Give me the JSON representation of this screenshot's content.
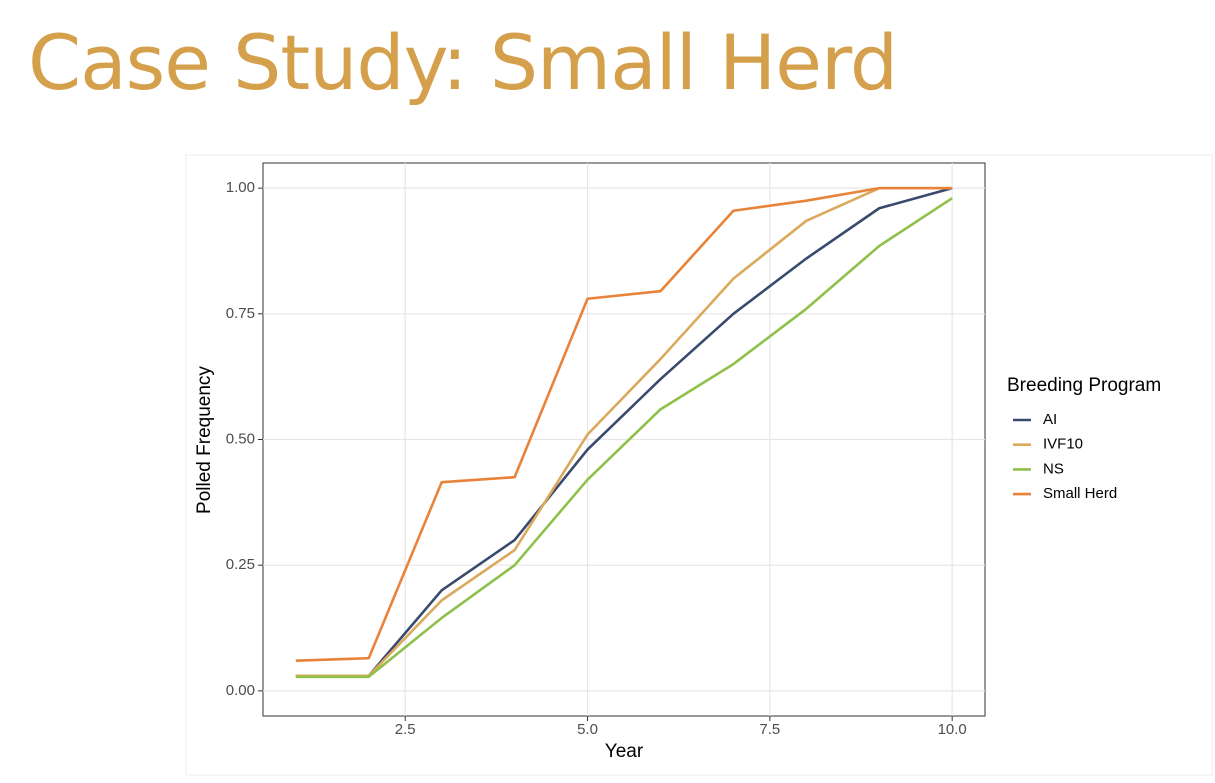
{
  "title": "Case Study: Small Herd",
  "chart_data": {
    "type": "line",
    "x_label": "Year",
    "y_label": "Polled Frequency",
    "legend_title": "Breeding Program",
    "legend": "right",
    "grid": true,
    "x": [
      1,
      2,
      3,
      4,
      5,
      6,
      7,
      8,
      9,
      10
    ],
    "series": [
      {
        "name": "AI",
        "color": "#3a4a6e",
        "values": [
          0.03,
          0.03,
          0.2,
          0.3,
          0.48,
          0.62,
          0.75,
          0.86,
          0.96,
          1.0
        ]
      },
      {
        "name": "IVF10",
        "color": "#dba95c",
        "values": [
          0.03,
          0.03,
          0.18,
          0.28,
          0.51,
          0.66,
          0.82,
          0.935,
          1.0,
          1.0
        ]
      },
      {
        "name": "NS",
        "color": "#8fc04a",
        "values": [
          0.028,
          0.028,
          0.145,
          0.25,
          0.42,
          0.56,
          0.65,
          0.76,
          0.885,
          0.98
        ]
      },
      {
        "name": "Small Herd",
        "color": "#e8833a",
        "values": [
          0.06,
          0.065,
          0.415,
          0.425,
          0.78,
          0.795,
          0.955,
          0.975,
          1.0,
          1.0
        ]
      }
    ],
    "xlim": [
      0.55,
      10.45
    ],
    "xticks": [
      {
        "value": 2.5,
        "label": "2.5"
      },
      {
        "value": 5,
        "label": "5.0"
      },
      {
        "value": 7.5,
        "label": "7.5"
      },
      {
        "value": 10,
        "label": "10.0"
      }
    ],
    "ylim": [
      -0.05,
      1.05
    ],
    "yticks": [
      {
        "value": 0,
        "label": "0.00"
      },
      {
        "value": 0.25,
        "label": "0.25"
      },
      {
        "value": 0.5,
        "label": "0.50"
      },
      {
        "value": 0.75,
        "label": "0.75"
      },
      {
        "value": 1,
        "label": "1.00"
      }
    ]
  }
}
